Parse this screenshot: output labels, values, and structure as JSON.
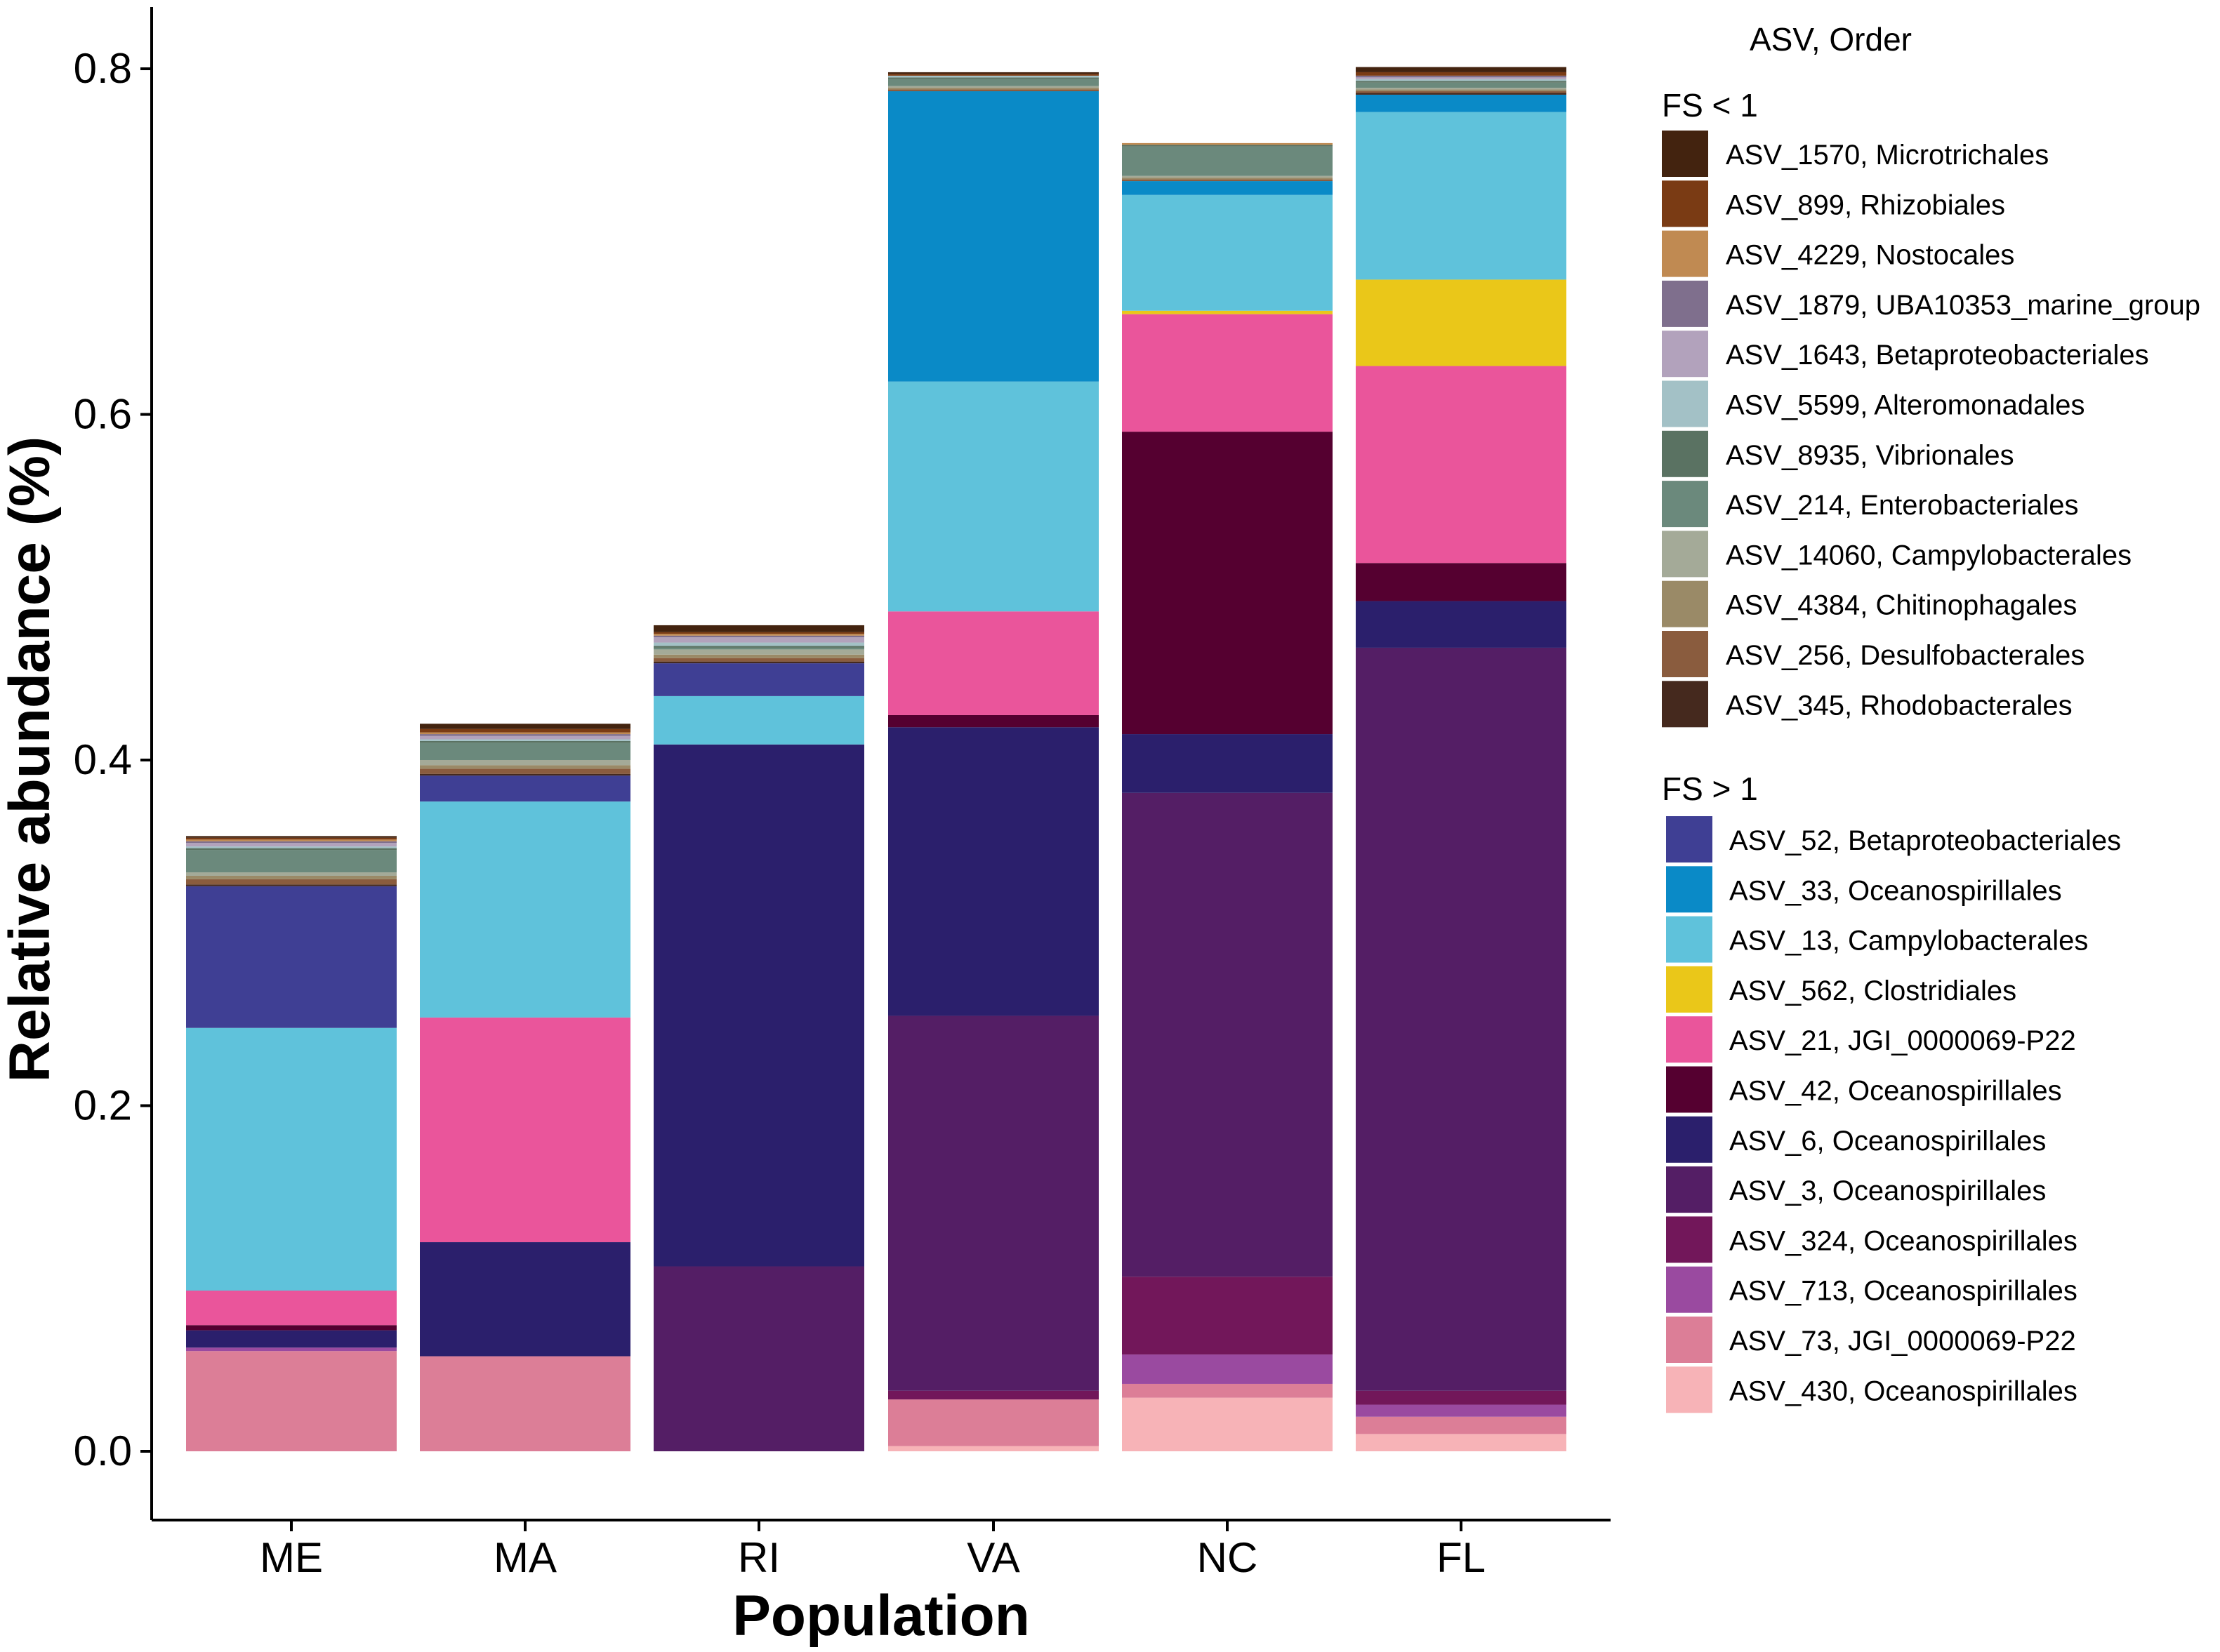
{
  "chart_data": {
    "type": "bar",
    "stacked": true,
    "xlabel": "Population",
    "ylabel": "Relative abundance (%)",
    "ylim": [
      -0.035,
      0.84
    ],
    "yticks": [
      "0.0",
      "0.2",
      "0.4",
      "0.6",
      "0.8"
    ],
    "categories": [
      "ME",
      "MA",
      "RI",
      "VA",
      "NC",
      "FL"
    ],
    "legend": {
      "title": "ASV, Order",
      "groups": [
        {
          "title": "FS < 1",
          "items": [
            {
              "id": "ASV_1570",
              "label": "ASV_1570, Microtrichales",
              "color": "#43230f"
            },
            {
              "id": "ASV_899",
              "label": "ASV_899, Rhizobiales",
              "color": "#7a3b14"
            },
            {
              "id": "ASV_4229",
              "label": "ASV_4229, Nostocales",
              "color": "#c08a52"
            },
            {
              "id": "ASV_1879",
              "label": "ASV_1879, UBA10353_marine_group",
              "color": "#7f6f8d"
            },
            {
              "id": "ASV_1643",
              "label": "ASV_1643, Betaproteobacteriales",
              "color": "#b2a2bc"
            },
            {
              "id": "ASV_5599",
              "label": "ASV_5599, Alteromonadales",
              "color": "#a3c1c6"
            },
            {
              "id": "ASV_8935",
              "label": "ASV_8935, Vibrionales",
              "color": "#5a7262"
            },
            {
              "id": "ASV_214",
              "label": "ASV_214, Enterobacteriales",
              "color": "#6b897c"
            },
            {
              "id": "ASV_14060",
              "label": "ASV_14060, Campylobacterales",
              "color": "#a4aa98"
            },
            {
              "id": "ASV_4384",
              "label": "ASV_4384, Chitinophagales",
              "color": "#9a8a67"
            },
            {
              "id": "ASV_256",
              "label": "ASV_256, Desulfobacterales",
              "color": "#8a5c3e"
            },
            {
              "id": "ASV_345",
              "label": "ASV_345, Rhodobacterales",
              "color": "#45291e"
            }
          ]
        },
        {
          "title": "FS > 1",
          "items": [
            {
              "id": "ASV_52",
              "label": "ASV_52, Betaproteobacteriales",
              "color": "#3f3f94"
            },
            {
              "id": "ASV_33",
              "label": "ASV_33, Oceanospirillales",
              "color": "#0a8ac7"
            },
            {
              "id": "ASV_13",
              "label": "ASV_13, Campylobacterales",
              "color": "#5fc2db"
            },
            {
              "id": "ASV_562",
              "label": "ASV_562, Clostridiales",
              "color": "#eac719"
            },
            {
              "id": "ASV_21",
              "label": "ASV_21, JGI_0000069-P22",
              "color": "#ea559b"
            },
            {
              "id": "ASV_42",
              "label": "ASV_42, Oceanospirillales",
              "color": "#550030"
            },
            {
              "id": "ASV_6",
              "label": "ASV_6, Oceanospirillales",
              "color": "#2b1f6c"
            },
            {
              "id": "ASV_3",
              "label": "ASV_3, Oceanospirillales",
              "color": "#541e65"
            },
            {
              "id": "ASV_324",
              "label": "ASV_324, Oceanospirillales",
              "color": "#72175a"
            },
            {
              "id": "ASV_713",
              "label": "ASV_713, Oceanospirillales",
              "color": "#9a4aa0"
            },
            {
              "id": "ASV_73",
              "label": "ASV_73, JGI_0000069-P22",
              "color": "#dc7e97"
            },
            {
              "id": "ASV_430",
              "label": "ASV_430, Oceanospirillales",
              "color": "#f7b3b7"
            }
          ]
        }
      ]
    },
    "stack_order": [
      "ASV_430",
      "ASV_73",
      "ASV_713",
      "ASV_324",
      "ASV_3",
      "ASV_6",
      "ASV_42",
      "ASV_21",
      "ASV_562",
      "ASV_13",
      "ASV_33",
      "ASV_52",
      "ASV_345",
      "ASV_256",
      "ASV_4384",
      "ASV_14060",
      "ASV_214",
      "ASV_8935",
      "ASV_5599",
      "ASV_1643",
      "ASV_1879",
      "ASV_4229",
      "ASV_899",
      "ASV_1570"
    ],
    "series": {
      "ASV_430": [
        0.0,
        0.0,
        0.0,
        0.003,
        0.031,
        0.01
      ],
      "ASV_73": [
        0.058,
        0.055,
        0.0,
        0.027,
        0.008,
        0.01
      ],
      "ASV_713": [
        0.002,
        0.0,
        0.0,
        0.0,
        0.017,
        0.007
      ],
      "ASV_324": [
        0.0,
        0.0,
        0.0,
        0.005,
        0.045,
        0.008
      ],
      "ASV_3": [
        0.0,
        0.0,
        0.107,
        0.217,
        0.28,
        0.43
      ],
      "ASV_6": [
        0.01,
        0.066,
        0.302,
        0.167,
        0.034,
        0.027
      ],
      "ASV_42": [
        0.003,
        0.0,
        0.0,
        0.007,
        0.175,
        0.022
      ],
      "ASV_21": [
        0.02,
        0.13,
        0.0,
        0.06,
        0.068,
        0.114
      ],
      "ASV_562": [
        0.0,
        0.0,
        0.0,
        0.0,
        0.002,
        0.05
      ],
      "ASV_13": [
        0.152,
        0.125,
        0.028,
        0.133,
        0.067,
        0.097
      ],
      "ASV_33": [
        0.0,
        0.0,
        0.0,
        0.168,
        0.008,
        0.01
      ],
      "ASV_52": [
        0.082,
        0.015,
        0.019,
        0.0,
        0.0,
        0.0
      ],
      "ASV_345": [
        0.001,
        0.001,
        0.001,
        0.0,
        0.0,
        0.001
      ],
      "ASV_256": [
        0.003,
        0.003,
        0.002,
        0.001,
        0.001,
        0.001
      ],
      "ASV_4384": [
        0.002,
        0.002,
        0.002,
        0.001,
        0.001,
        0.001
      ],
      "ASV_14060": [
        0.002,
        0.003,
        0.003,
        0.001,
        0.001,
        0.001
      ],
      "ASV_214": [
        0.013,
        0.01,
        0.001,
        0.004,
        0.017,
        0.003
      ],
      "ASV_8935": [
        0.001,
        0.001,
        0.001,
        0.001,
        0.001,
        0.001
      ],
      "ASV_5599": [
        0.001,
        0.001,
        0.002,
        0.001,
        0.0,
        0.001
      ],
      "ASV_1643": [
        0.002,
        0.002,
        0.003,
        0.0,
        0.0,
        0.001
      ],
      "ASV_1879": [
        0.001,
        0.001,
        0.001,
        0.0,
        0.0,
        0.001
      ],
      "ASV_4229": [
        0.001,
        0.001,
        0.001,
        0.0,
        0.001,
        0.0
      ],
      "ASV_899": [
        0.001,
        0.002,
        0.001,
        0.001,
        0.0,
        0.002
      ],
      "ASV_1570": [
        0.001,
        0.003,
        0.004,
        0.001,
        0.0,
        0.003
      ]
    }
  }
}
